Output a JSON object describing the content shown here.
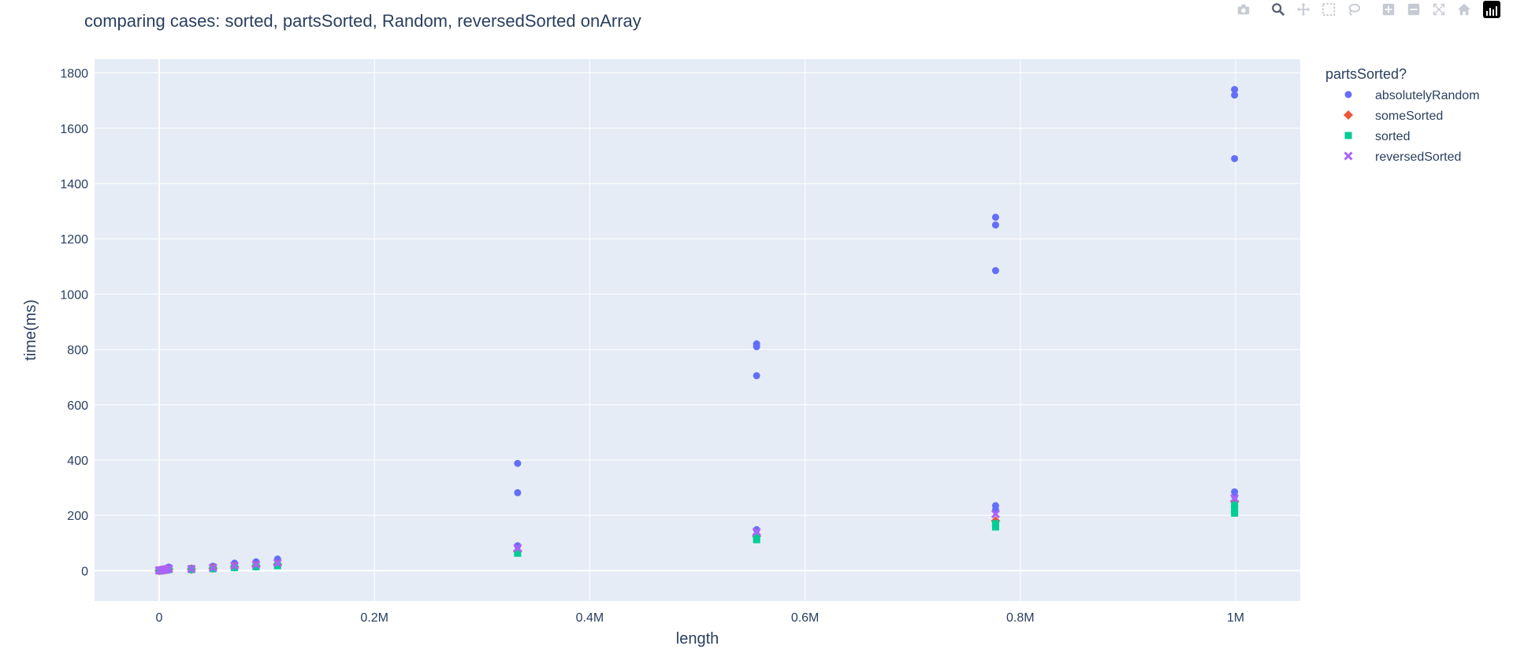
{
  "chart_data": {
    "type": "scatter",
    "title": "comparing cases: sorted, partsSorted, Random, reversedSorted onArray",
    "xlabel": "length",
    "ylabel": "time(ms)",
    "xlim": [
      -60000,
      1060000
    ],
    "ylim": [
      -110,
      1850
    ],
    "x_ticks": [
      0,
      200000,
      400000,
      600000,
      800000,
      1000000
    ],
    "x_tick_labels": [
      "0",
      "0.2M",
      "0.4M",
      "0.6M",
      "0.8M",
      "1M"
    ],
    "y_ticks": [
      0,
      200,
      400,
      600,
      800,
      1000,
      1200,
      1400,
      1600,
      1800
    ],
    "y_tick_labels": [
      "0",
      "200",
      "400",
      "600",
      "800",
      "1000",
      "1200",
      "1400",
      "1600",
      "1800"
    ],
    "grid": true,
    "legend_title": "partsSorted?",
    "legend_position": "top-right",
    "plot_bg": "#e5ecf6",
    "series": [
      {
        "name": "absolutelyRandom",
        "color": "#636efa",
        "marker": "circle",
        "points": [
          [
            0,
            1
          ],
          [
            1000,
            2
          ],
          [
            3000,
            4
          ],
          [
            5000,
            6
          ],
          [
            7000,
            9
          ],
          [
            9000,
            13
          ],
          [
            30000,
            9
          ],
          [
            50000,
            16
          ],
          [
            70000,
            27
          ],
          [
            90000,
            32
          ],
          [
            110000,
            42
          ],
          [
            333000,
            388
          ],
          [
            333000,
            282
          ],
          [
            333000,
            90
          ],
          [
            555000,
            820
          ],
          [
            555000,
            810
          ],
          [
            555000,
            705
          ],
          [
            555000,
            148
          ],
          [
            777000,
            1278
          ],
          [
            777000,
            1250
          ],
          [
            777000,
            1085
          ],
          [
            777000,
            235
          ],
          [
            777000,
            220
          ],
          [
            999000,
            1740
          ],
          [
            999000,
            1720
          ],
          [
            999000,
            1490
          ],
          [
            999000,
            285
          ],
          [
            999000,
            270
          ]
        ]
      },
      {
        "name": "someSorted",
        "color": "#ef553b",
        "marker": "diamond",
        "points": [
          [
            0,
            0
          ],
          [
            1000,
            1
          ],
          [
            3000,
            2
          ],
          [
            5000,
            3
          ],
          [
            7000,
            4
          ],
          [
            9000,
            5
          ],
          [
            30000,
            5
          ],
          [
            50000,
            9
          ],
          [
            70000,
            14
          ],
          [
            90000,
            17
          ],
          [
            110000,
            22
          ],
          [
            333000,
            70
          ],
          [
            555000,
            125
          ],
          [
            777000,
            180
          ],
          [
            999000,
            250
          ]
        ]
      },
      {
        "name": "sorted",
        "color": "#00cc96",
        "marker": "square",
        "points": [
          [
            0,
            0
          ],
          [
            1000,
            1
          ],
          [
            3000,
            1
          ],
          [
            5000,
            2
          ],
          [
            7000,
            3
          ],
          [
            9000,
            4
          ],
          [
            30000,
            4
          ],
          [
            50000,
            7
          ],
          [
            70000,
            11
          ],
          [
            90000,
            14
          ],
          [
            110000,
            18
          ],
          [
            333000,
            63
          ],
          [
            555000,
            112
          ],
          [
            555000,
            122
          ],
          [
            777000,
            158
          ],
          [
            777000,
            170
          ],
          [
            999000,
            208
          ],
          [
            999000,
            222
          ],
          [
            999000,
            238
          ]
        ]
      },
      {
        "name": "reversedSorted",
        "color": "#ab63fa",
        "marker": "x",
        "points": [
          [
            0,
            1
          ],
          [
            1000,
            1
          ],
          [
            3000,
            2
          ],
          [
            5000,
            4
          ],
          [
            7000,
            5
          ],
          [
            9000,
            7
          ],
          [
            30000,
            6
          ],
          [
            50000,
            11
          ],
          [
            70000,
            18
          ],
          [
            90000,
            22
          ],
          [
            110000,
            28
          ],
          [
            333000,
            82
          ],
          [
            555000,
            140
          ],
          [
            777000,
            205
          ],
          [
            999000,
            262
          ]
        ]
      }
    ]
  },
  "toolbar": {
    "icons": [
      "camera-icon",
      "zoom-icon",
      "pan-icon",
      "box-select-icon",
      "lasso-select-icon",
      "zoom-in-icon",
      "zoom-out-icon",
      "autoscale-icon",
      "reset-axes-icon",
      "plotly-logo"
    ]
  }
}
